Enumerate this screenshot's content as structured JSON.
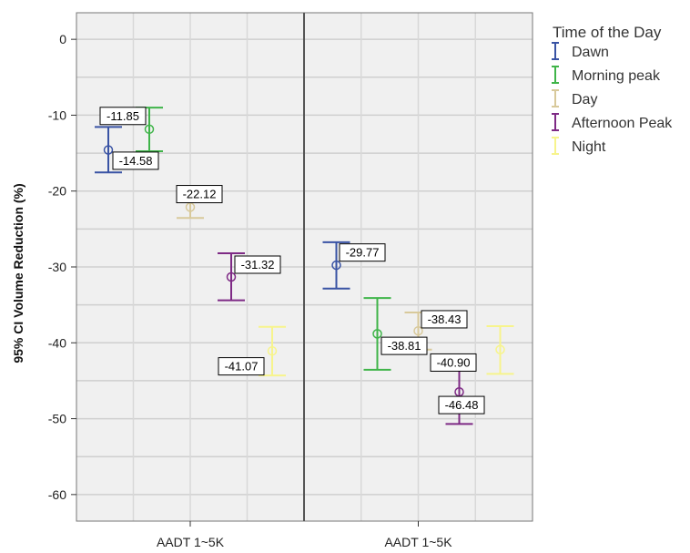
{
  "chart_data": {
    "type": "errorbar",
    "ylabel": "95% CI Volume Reduction (%)",
    "xlabel": "",
    "ylim": [
      -63.5,
      3.5
    ],
    "yticks": [
      0,
      -10,
      -20,
      -30,
      -40,
      -50,
      -60
    ],
    "grid": true,
    "legend": {
      "title": "Time of the Day",
      "position": "right"
    },
    "panels": [
      {
        "label": "AADT 1~5K"
      },
      {
        "label": "AADT 1~5K"
      }
    ],
    "series": [
      {
        "name": "Dawn",
        "color": "#3953a4",
        "points": [
          {
            "panel": 0,
            "mean": -14.58,
            "upper": -11.55,
            "lower": -17.55,
            "labels": [
              "-11.85",
              "-14.58"
            ]
          },
          {
            "panel": 1,
            "mean": -29.77,
            "upper": -26.75,
            "lower": -32.85,
            "labels": [
              "-29.77"
            ]
          }
        ]
      },
      {
        "name": "Morning peak",
        "color": "#3fb449",
        "points": [
          {
            "panel": 0,
            "mean": -11.85,
            "upper": -9.0,
            "lower": -14.75,
            "labels": []
          },
          {
            "panel": 1,
            "mean": -38.81,
            "upper": -34.1,
            "lower": -43.55,
            "labels": [
              "-38.81"
            ]
          }
        ]
      },
      {
        "name": "Day",
        "color": "#d8c99b",
        "points": [
          {
            "panel": 0,
            "mean": -22.12,
            "upper": -20.65,
            "lower": -23.55,
            "labels": [
              "-22.12"
            ]
          },
          {
            "panel": 1,
            "mean": -38.43,
            "upper": -36.0,
            "lower": -40.9,
            "labels": [
              "-38.43"
            ]
          }
        ]
      },
      {
        "name": "Afternoon Peak",
        "color": "#7e2a85",
        "points": [
          {
            "panel": 0,
            "mean": -31.32,
            "upper": -28.2,
            "lower": -34.4,
            "labels": [
              "-31.32"
            ]
          },
          {
            "panel": 1,
            "mean": -46.48,
            "upper": -42.2,
            "lower": -50.7,
            "labels": [
              "-40.90",
              "-46.48"
            ]
          }
        ]
      },
      {
        "name": "Night",
        "color": "#f7f48c",
        "points": [
          {
            "panel": 0,
            "mean": -41.07,
            "upper": -37.9,
            "lower": -44.3,
            "labels": [
              "-41.07"
            ]
          },
          {
            "panel": 1,
            "mean": -40.9,
            "upper": -37.8,
            "lower": -44.1,
            "labels": []
          }
        ]
      }
    ]
  }
}
